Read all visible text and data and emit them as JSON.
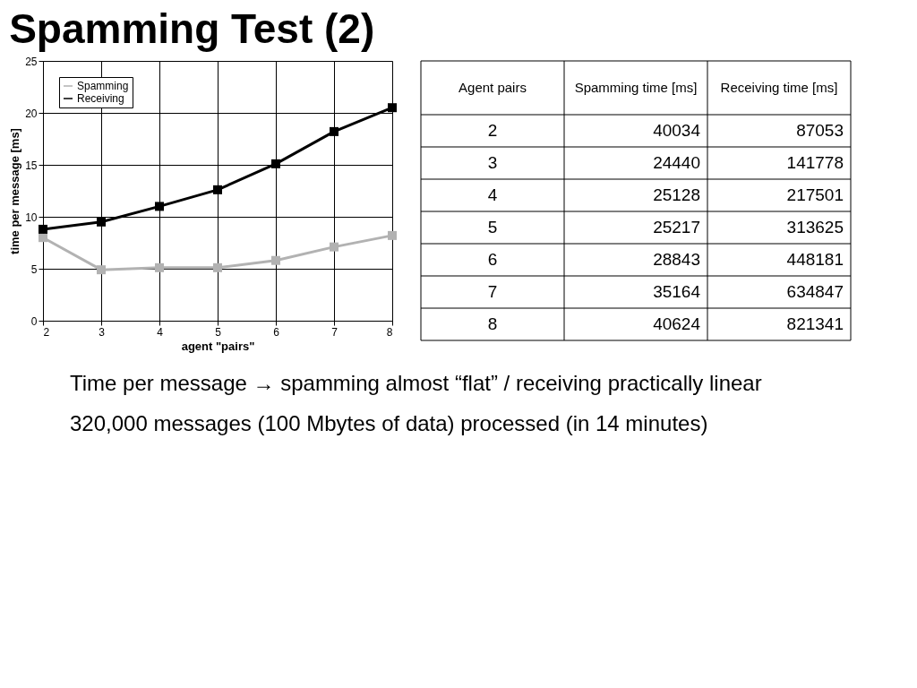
{
  "chart_data": {
    "type": "line",
    "title": "Spamming Test (2)",
    "xlabel": "agent \"pairs\"",
    "ylabel": "time per message [ms]",
    "x": [
      2,
      3,
      4,
      5,
      6,
      7,
      8
    ],
    "series": [
      {
        "name": "Spamming",
        "color": "#b2b2b2",
        "values": [
          8.0,
          4.9,
          5.1,
          5.1,
          5.8,
          7.1,
          8.2
        ]
      },
      {
        "name": "Receiving",
        "color": "#000000",
        "values": [
          8.8,
          9.5,
          11.0,
          12.6,
          15.1,
          18.2,
          20.5
        ]
      }
    ],
    "xlim": [
      2,
      8
    ],
    "xticks": [
      2,
      3,
      4,
      5,
      6,
      7,
      8
    ],
    "ylim": [
      0,
      25
    ],
    "yticks": [
      0,
      5,
      10,
      15,
      20,
      25
    ],
    "grid": true,
    "legend": "top left",
    "marker": "square",
    "line_style": "solid",
    "annotations": [
      "Agent pairs",
      "Spamming time [ms]",
      "Receiving time [ms]",
      "2",
      "40034",
      "87053",
      "3",
      "24440",
      "141778",
      "4",
      "25128",
      "217501",
      "5",
      "25217",
      "313625",
      "6",
      "28843",
      "448181",
      "7",
      "35164",
      "634847",
      "8",
      "40624",
      "821341",
      "Time per message → spamming almost “flat” / receiving practically linear",
      "320,000 messages (100 Mbytes of data) processed (in 14 minutes)"
    ]
  }
}
